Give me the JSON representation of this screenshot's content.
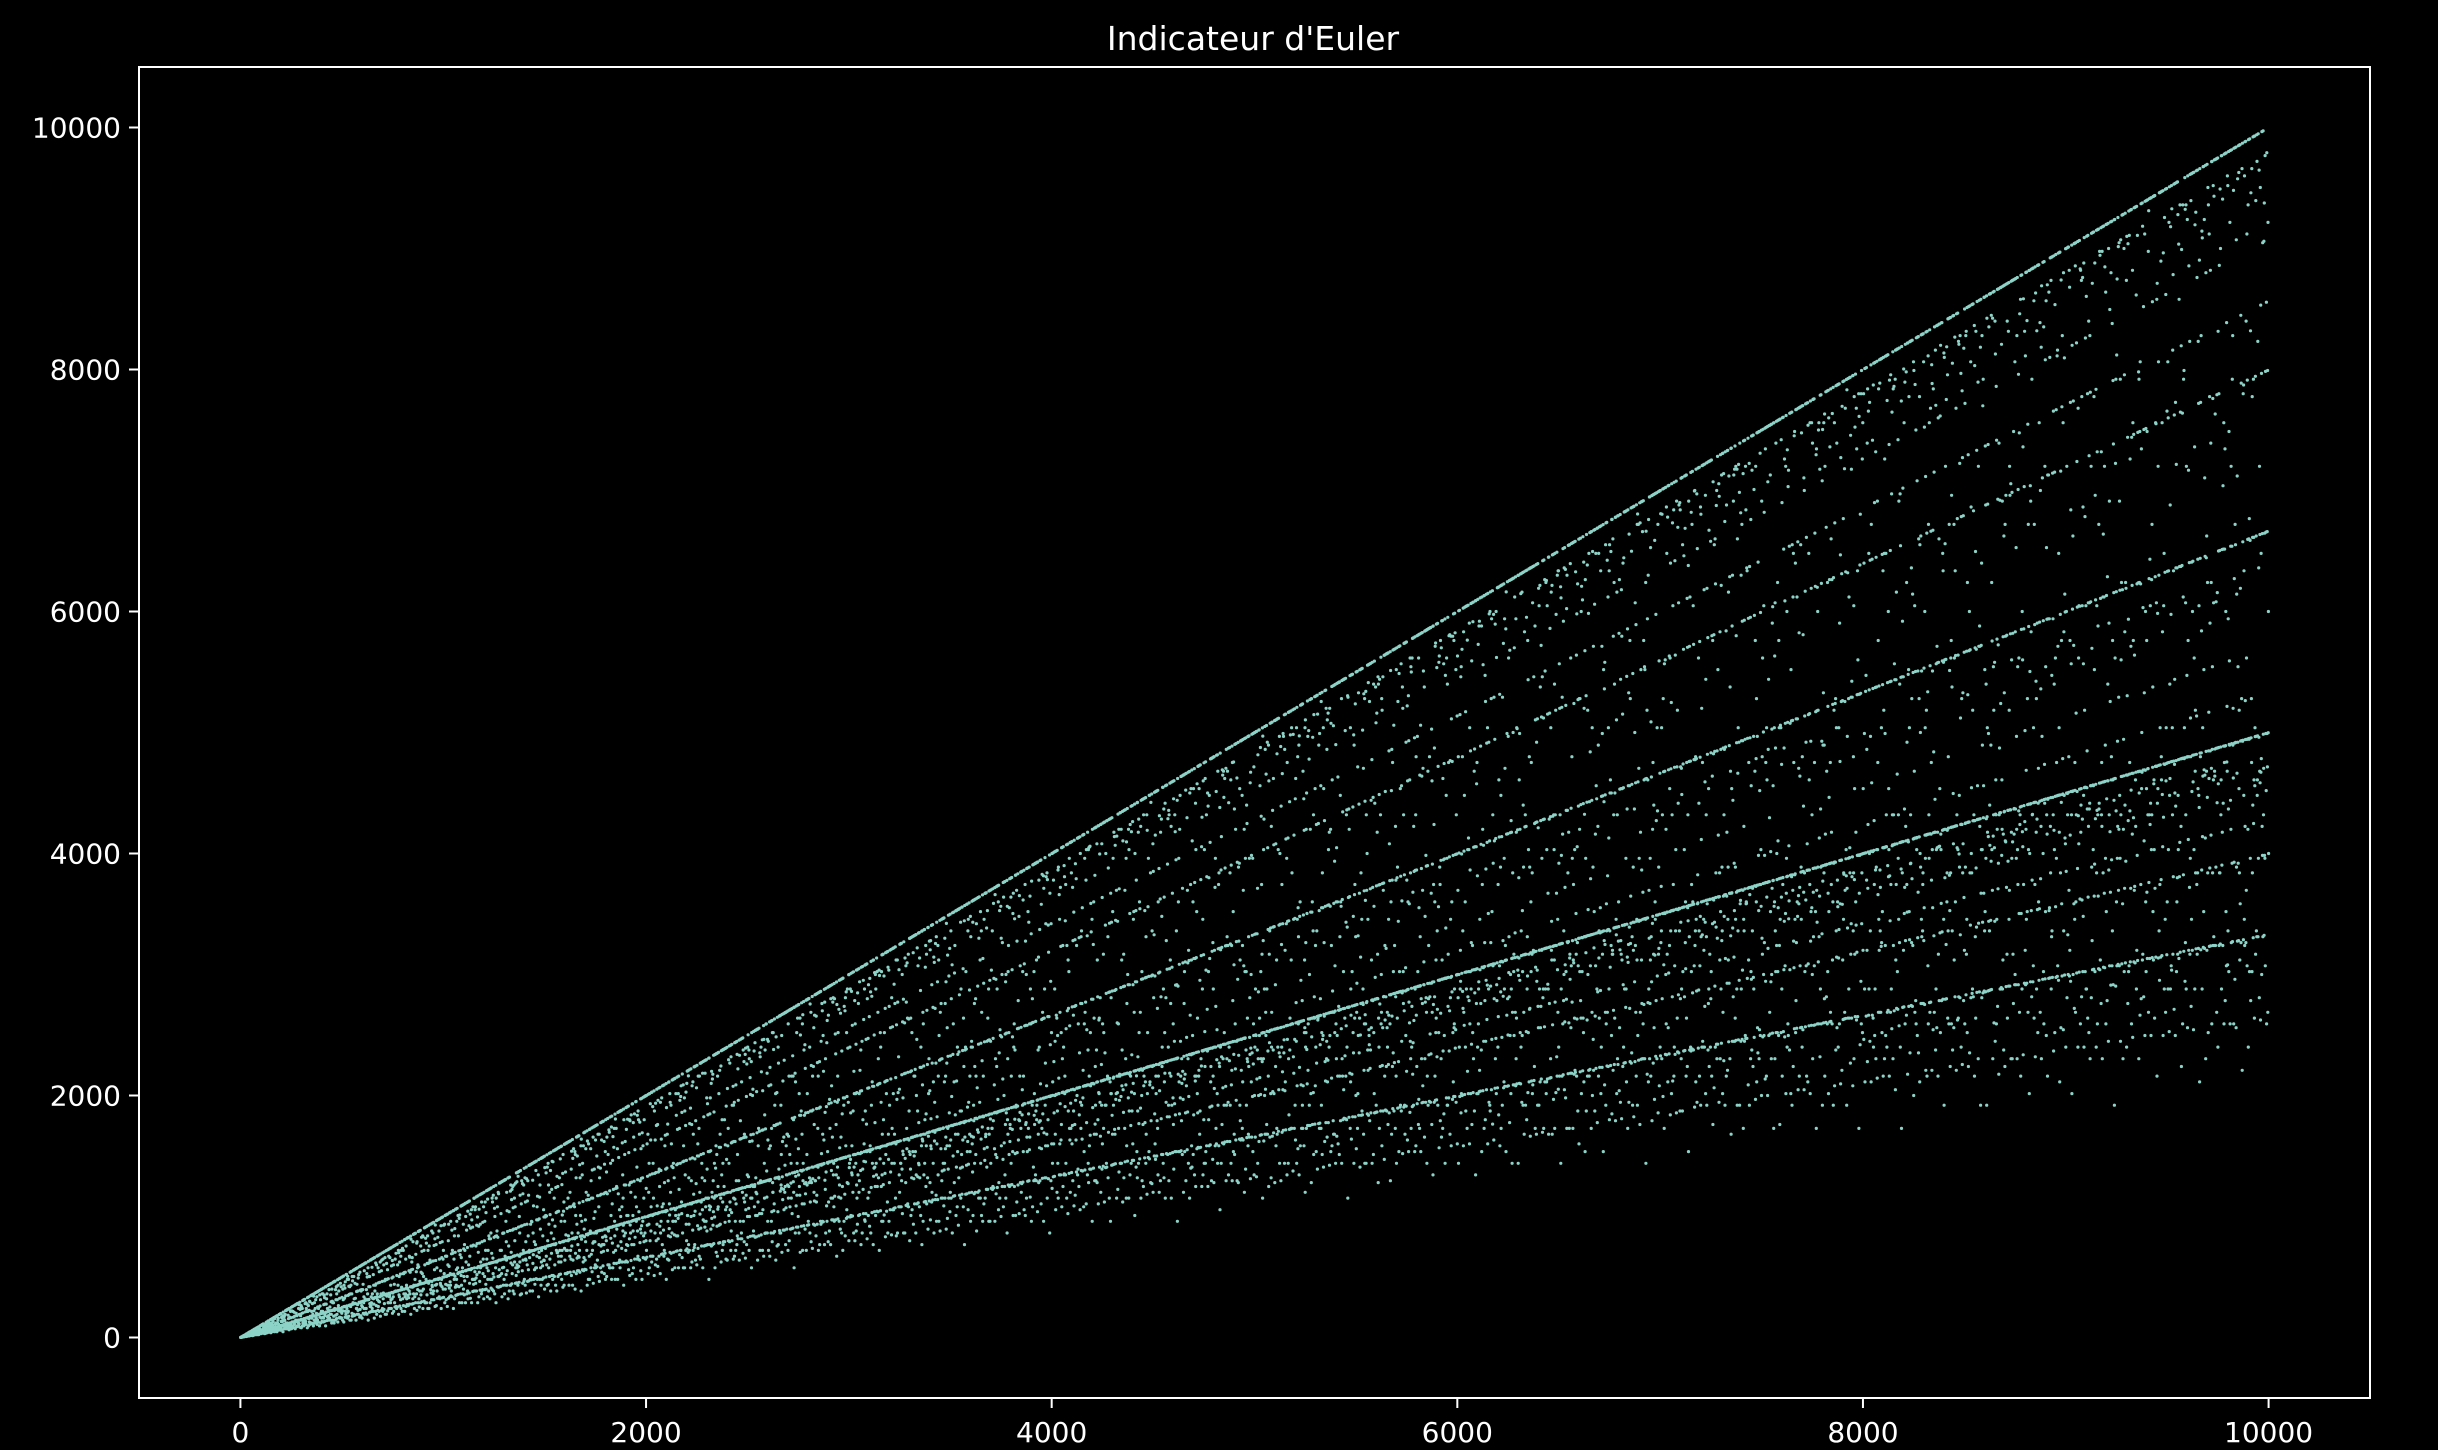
{
  "chart_data": {
    "type": "scatter",
    "title": "Indicateur d'Euler",
    "xlabel": "",
    "ylabel": "",
    "function": "euler_totient",
    "x_range": [
      1,
      10000
    ],
    "xlim": [
      -500,
      10500
    ],
    "ylim": [
      -500,
      10500
    ],
    "x_ticks": [
      0,
      2000,
      4000,
      6000,
      8000,
      10000
    ],
    "y_ticks": [
      0,
      2000,
      4000,
      6000,
      8000,
      10000
    ],
    "x_tick_labels": [
      "0",
      "2000",
      "4000",
      "6000",
      "8000",
      "10000"
    ],
    "y_tick_labels": [
      "0",
      "2000",
      "4000",
      "6000",
      "8000",
      "10000"
    ],
    "grid": false,
    "legend": "none",
    "colors": {
      "background": "#000000",
      "axes": "#ffffff",
      "text": "#ffffff",
      "points": "#8dd3c7"
    }
  }
}
